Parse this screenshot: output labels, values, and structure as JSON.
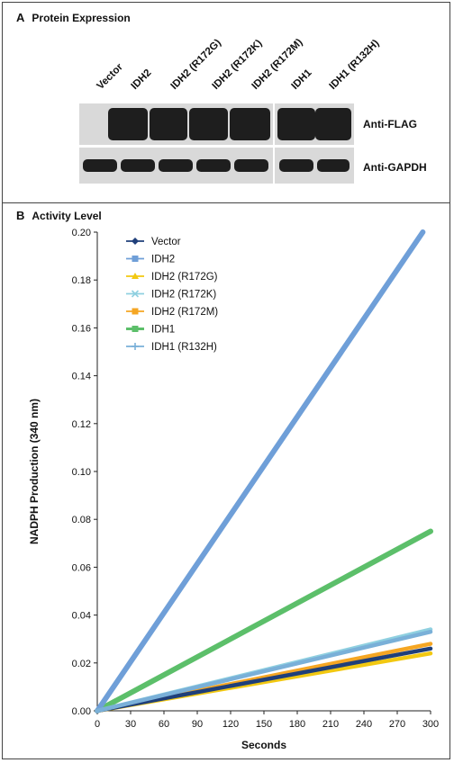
{
  "panel_a": {
    "letter": "A",
    "title": "Protein Expression",
    "lanes": [
      "Vector",
      "IDH2",
      "IDH2 (R172G)",
      "IDH2 (R172K)",
      "IDH2 (R172M)",
      "IDH1",
      "IDH1 (R132H)"
    ],
    "antibodies": [
      "Anti-FLAG",
      "Anti-GAPDH"
    ]
  },
  "panel_b": {
    "letter": "B",
    "title": "Activity Level"
  },
  "chart_data": {
    "type": "line",
    "title": "Activity Level",
    "xlabel": "Seconds",
    "ylabel": "NADPH Production (340 nm)",
    "xlim": [
      0,
      300
    ],
    "ylim": [
      0,
      0.2
    ],
    "xticks": [
      "0",
      "30",
      "60",
      "90",
      "120",
      "150",
      "180",
      "210",
      "240",
      "270",
      "300"
    ],
    "yticks": [
      "0.00",
      "0.02",
      "0.04",
      "0.06",
      "0.08",
      "0.10",
      "0.12",
      "0.14",
      "0.16",
      "0.18",
      "0.20"
    ],
    "legend_position": "top-left",
    "series": [
      {
        "name": "Vector",
        "color": "#1f3f7a",
        "marker": "diamond",
        "x": [
          0,
          300
        ],
        "y": [
          0,
          0.026
        ]
      },
      {
        "name": "IDH2",
        "color": "#6f9fd8",
        "marker": "square",
        "x": [
          0,
          293
        ],
        "y": [
          0,
          0.2
        ]
      },
      {
        "name": "IDH2 (R172G)",
        "color": "#f2c811",
        "marker": "triangle",
        "x": [
          0,
          300
        ],
        "y": [
          0,
          0.024
        ]
      },
      {
        "name": "IDH2 (R172K)",
        "color": "#8fd0e0",
        "marker": "x",
        "x": [
          0,
          300
        ],
        "y": [
          0,
          0.034
        ]
      },
      {
        "name": "IDH2 (R172M)",
        "color": "#f5a623",
        "marker": "square",
        "x": [
          0,
          300
        ],
        "y": [
          0,
          0.028
        ]
      },
      {
        "name": "IDH1",
        "color": "#5cbf6a",
        "marker": "square",
        "x": [
          0,
          300
        ],
        "y": [
          0,
          0.075
        ]
      },
      {
        "name": "IDH1 (R132H)",
        "color": "#7ab0d8",
        "marker": "plus",
        "x": [
          0,
          300
        ],
        "y": [
          0,
          0.033
        ]
      }
    ]
  }
}
